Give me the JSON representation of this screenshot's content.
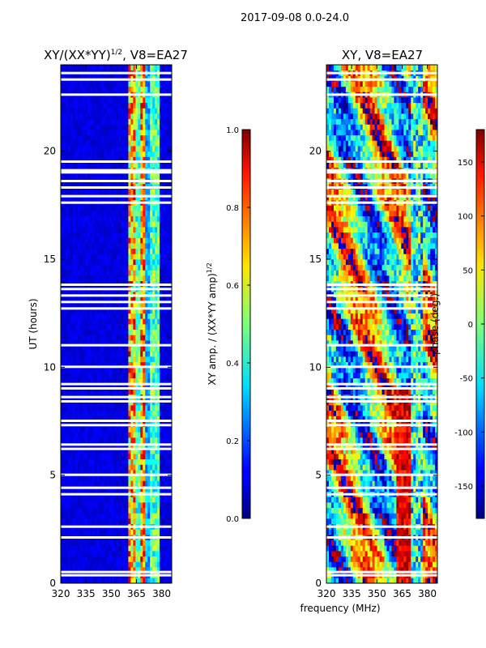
{
  "suptitle": "2017-09-08 0.0-24.0",
  "shared_xlabel": "frequency (MHz)",
  "colors": {
    "axis": "#000000",
    "background": "#ffffff",
    "gap": "#ffffff"
  },
  "chart_data": [
    {
      "type": "heatmap",
      "id": "amp",
      "title_main": "XY/(XX*YY)",
      "title_sup": "1/2",
      "title_rest": ", V8=EA27",
      "ylabel": "UT (hours)",
      "xlabel": "",
      "xlim": [
        320,
        386
      ],
      "ylim": [
        0,
        24
      ],
      "xticks": [
        320,
        335,
        350,
        365,
        380
      ],
      "yticks": [
        0,
        5,
        10,
        15,
        20
      ],
      "colormap": "jet",
      "colorbar": {
        "label_main": "XY amp. / (XX*YY amp)",
        "label_sup": "1/2",
        "range": [
          0.0,
          1.0
        ],
        "ticks": [
          "0.0",
          "0.2",
          "0.4",
          "0.6",
          "0.8",
          "1.0"
        ]
      },
      "gaps_hours": [
        0.35,
        0.5,
        2.1,
        2.6,
        4.1,
        4.4,
        5.0,
        6.2,
        6.4,
        7.3,
        7.5,
        8.4,
        8.6,
        9.0,
        9.2,
        10.0,
        11.0,
        12.7,
        13.0,
        13.3,
        13.6,
        13.8,
        17.6,
        17.9,
        18.3,
        18.6,
        19.0,
        19.1,
        19.5,
        22.6,
        23.3,
        23.6
      ]
    },
    {
      "type": "heatmap",
      "id": "phase",
      "title_main": "XY, V8=EA27",
      "ylabel": "",
      "xlabel": "frequency (MHz)",
      "xlim": [
        320,
        386
      ],
      "ylim": [
        0,
        24
      ],
      "xticks": [
        320,
        335,
        350,
        365,
        380
      ],
      "yticks": [
        0,
        5,
        10,
        15,
        20
      ],
      "colormap": "jet",
      "colorbar": {
        "label_main": "phase (deg.)",
        "range": [
          -180,
          180
        ],
        "ticks": [
          "-150",
          "-100",
          "-50",
          "0",
          "50",
          "100",
          "150"
        ]
      },
      "gaps_hours": [
        0.35,
        0.5,
        2.1,
        2.6,
        4.1,
        4.4,
        5.0,
        6.2,
        6.4,
        7.3,
        7.5,
        8.4,
        8.6,
        9.0,
        9.2,
        10.0,
        11.0,
        12.7,
        13.0,
        13.3,
        13.6,
        13.8,
        17.6,
        17.9,
        18.3,
        18.6,
        19.0,
        19.1,
        19.5,
        22.6,
        23.3,
        23.6
      ]
    }
  ]
}
